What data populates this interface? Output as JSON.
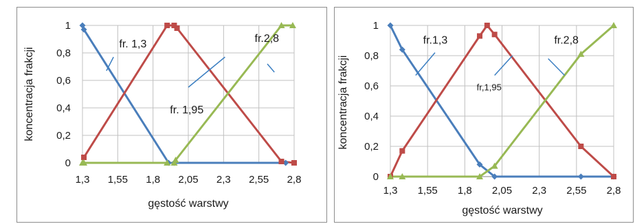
{
  "colors": {
    "fr13": "#4a7ebb",
    "fr195": "#be4b48",
    "fr28": "#98b954",
    "grid": "#c0c0c0",
    "axis": "#868686"
  },
  "chart_data": [
    {
      "type": "line",
      "xlabel": "gęstość warstwy",
      "ylabel": "koncentracja frakcji",
      "xlim": [
        1.3,
        2.8
      ],
      "ylim": [
        0,
        1
      ],
      "x_ticks": [
        {
          "value": 1.3,
          "label": "1,3"
        },
        {
          "value": 1.55,
          "label": "1,55"
        },
        {
          "value": 1.8,
          "label": "1,8"
        },
        {
          "value": 2.05,
          "label": "2,05"
        },
        {
          "value": 2.3,
          "label": "2,3"
        },
        {
          "value": 2.55,
          "label": "2,55"
        },
        {
          "value": 2.8,
          "label": "2,8"
        }
      ],
      "y_ticks": [
        {
          "value": 0,
          "label": "0"
        },
        {
          "value": 0.2,
          "label": "0,2"
        },
        {
          "value": 0.4,
          "label": "0,4"
        },
        {
          "value": 0.6,
          "label": "0,6"
        },
        {
          "value": 0.8,
          "label": "0,8"
        },
        {
          "value": 1,
          "label": "1"
        }
      ],
      "series": [
        {
          "key": "fr13",
          "marker": "diamond",
          "x": [
            1.3,
            1.31,
            1.91,
            1.95,
            2.74
          ],
          "y": [
            1,
            0.97,
            0,
            0,
            0
          ]
        },
        {
          "key": "fr195",
          "marker": "square",
          "x": [
            1.31,
            1.9,
            1.95,
            1.97,
            2.71,
            2.8
          ],
          "y": [
            0.04,
            1,
            1,
            0.98,
            0.01,
            0
          ]
        },
        {
          "key": "fr28",
          "marker": "triangle",
          "x": [
            1.3,
            1.31,
            1.9,
            1.95,
            1.96,
            2.71,
            2.79
          ],
          "y": [
            0,
            0,
            0,
            0,
            0.02,
            1,
            1
          ]
        }
      ],
      "annotations": [
        {
          "text": "fr. 1,3",
          "size": "big",
          "lx": 1.56,
          "ly": 0.84,
          "line": [
            [
              1.52,
              0.77
            ],
            [
              1.47,
              0.67
            ]
          ]
        },
        {
          "text": "fr.2,8",
          "size": "big",
          "lx": 2.52,
          "ly": 0.88,
          "line": [
            [
              2.61,
              0.72
            ],
            [
              2.66,
              0.66
            ]
          ]
        },
        {
          "text": "fr. 1,95",
          "size": "big",
          "lx": 1.92,
          "ly": 0.36,
          "line": [
            [
              2.05,
              0.55
            ],
            [
              2.31,
              0.77
            ]
          ]
        }
      ]
    },
    {
      "type": "line",
      "xlabel": "gęstość warstwy",
      "ylabel": "koncentracja frakcji",
      "xlim": [
        1.3,
        2.8
      ],
      "ylim": [
        0,
        1
      ],
      "x_ticks": [
        {
          "value": 1.3,
          "label": "1,3"
        },
        {
          "value": 1.55,
          "label": "1,55"
        },
        {
          "value": 1.8,
          "label": "1,8"
        },
        {
          "value": 2.05,
          "label": "2,05"
        },
        {
          "value": 2.3,
          "label": "2,3"
        },
        {
          "value": 2.55,
          "label": "2,55"
        },
        {
          "value": 2.8,
          "label": "2,8"
        }
      ],
      "y_ticks": [
        {
          "value": 0,
          "label": "0"
        },
        {
          "value": 0.2,
          "label": "0,2"
        },
        {
          "value": 0.4,
          "label": "0,4"
        },
        {
          "value": 0.6,
          "label": "0,6"
        },
        {
          "value": 0.8,
          "label": "0,8"
        },
        {
          "value": 1,
          "label": "1"
        }
      ],
      "series": [
        {
          "key": "fr13",
          "marker": "diamond",
          "x": [
            1.3,
            1.38,
            1.9,
            2.0,
            2.58,
            2.8
          ],
          "y": [
            1,
            0.84,
            0.08,
            0,
            0,
            0
          ]
        },
        {
          "key": "fr195",
          "marker": "square",
          "x": [
            1.3,
            1.38,
            1.9,
            1.95,
            2.0,
            2.58,
            2.8
          ],
          "y": [
            0,
            0.17,
            0.93,
            1,
            0.94,
            0.2,
            0
          ]
        },
        {
          "key": "fr28",
          "marker": "triangle",
          "x": [
            1.3,
            1.38,
            1.9,
            2.0,
            2.58,
            2.8
          ],
          "y": [
            0,
            0,
            0,
            0.07,
            0.81,
            1
          ]
        }
      ],
      "annotations": [
        {
          "text": "fr.1,3",
          "size": "big",
          "lx": 1.52,
          "ly": 0.88,
          "line": [
            [
              1.6,
              0.82
            ],
            [
              1.47,
              0.67
            ]
          ]
        },
        {
          "text": "fr.2,8",
          "size": "big",
          "lx": 2.4,
          "ly": 0.88,
          "line": [
            [
              2.36,
              0.78
            ],
            [
              2.47,
              0.67
            ]
          ]
        },
        {
          "text": "fr,1,95",
          "size": "small",
          "lx": 1.88,
          "ly": 0.57,
          "line": [
            [
              2.0,
              0.67
            ],
            [
              2.12,
              0.8
            ]
          ]
        }
      ]
    }
  ]
}
